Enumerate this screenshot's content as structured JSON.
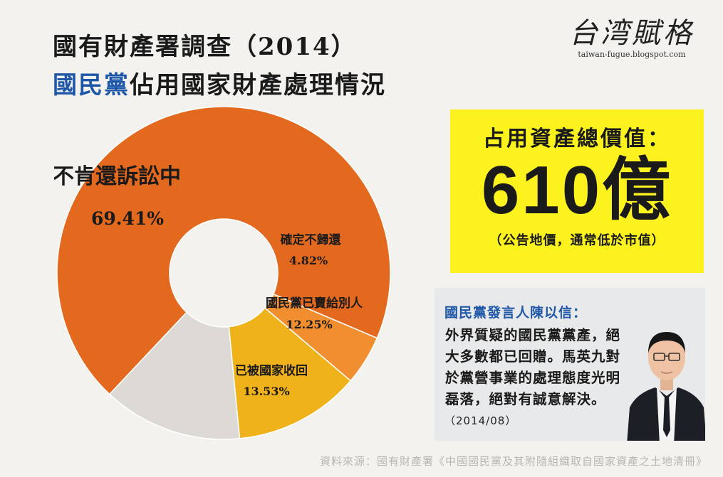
{
  "header": {
    "title_line1": "國有財產署調查（2014）",
    "title_line2_highlight": "國民黨",
    "title_line2_rest": "佔用國家財產處理情況"
  },
  "logo": {
    "name": "台湾賦格",
    "url": "taiwan-fugue.blogspot.com"
  },
  "chart_data": {
    "type": "pie",
    "donut": true,
    "title": "",
    "slices": [
      {
        "label": "不肯還訴訟中",
        "value": 69.41,
        "value_text": "69.41%",
        "color": "#e3691f"
      },
      {
        "label": "確定不歸還",
        "value": 4.82,
        "value_text": "4.82%",
        "color": "#f08e30"
      },
      {
        "label": "國民黨已賣給別人",
        "value": 12.25,
        "value_text": "12.25%",
        "color": "#f0b21a"
      },
      {
        "label": "已被國家收回",
        "value": 13.53,
        "value_text": "13.53%",
        "color": "#dddad5"
      }
    ]
  },
  "total_box": {
    "label": "占用資產總價值：",
    "value": "610億",
    "note": "（公告地價，通常低於市值）",
    "background": "#fbf21e"
  },
  "quote": {
    "speaker": "國民黨發言人陳以信：",
    "lines": [
      "外界質疑的國民黨黨產，絕",
      "大多數都已回贈。馬英九對",
      "於黨營事業的處理態度光明",
      "磊落，絕對有誠意解決。"
    ],
    "date": "（2014/08）"
  },
  "source": "資料來源：國有財產署《中國國民黨及其附隨組織取自國家資產之土地清冊》"
}
